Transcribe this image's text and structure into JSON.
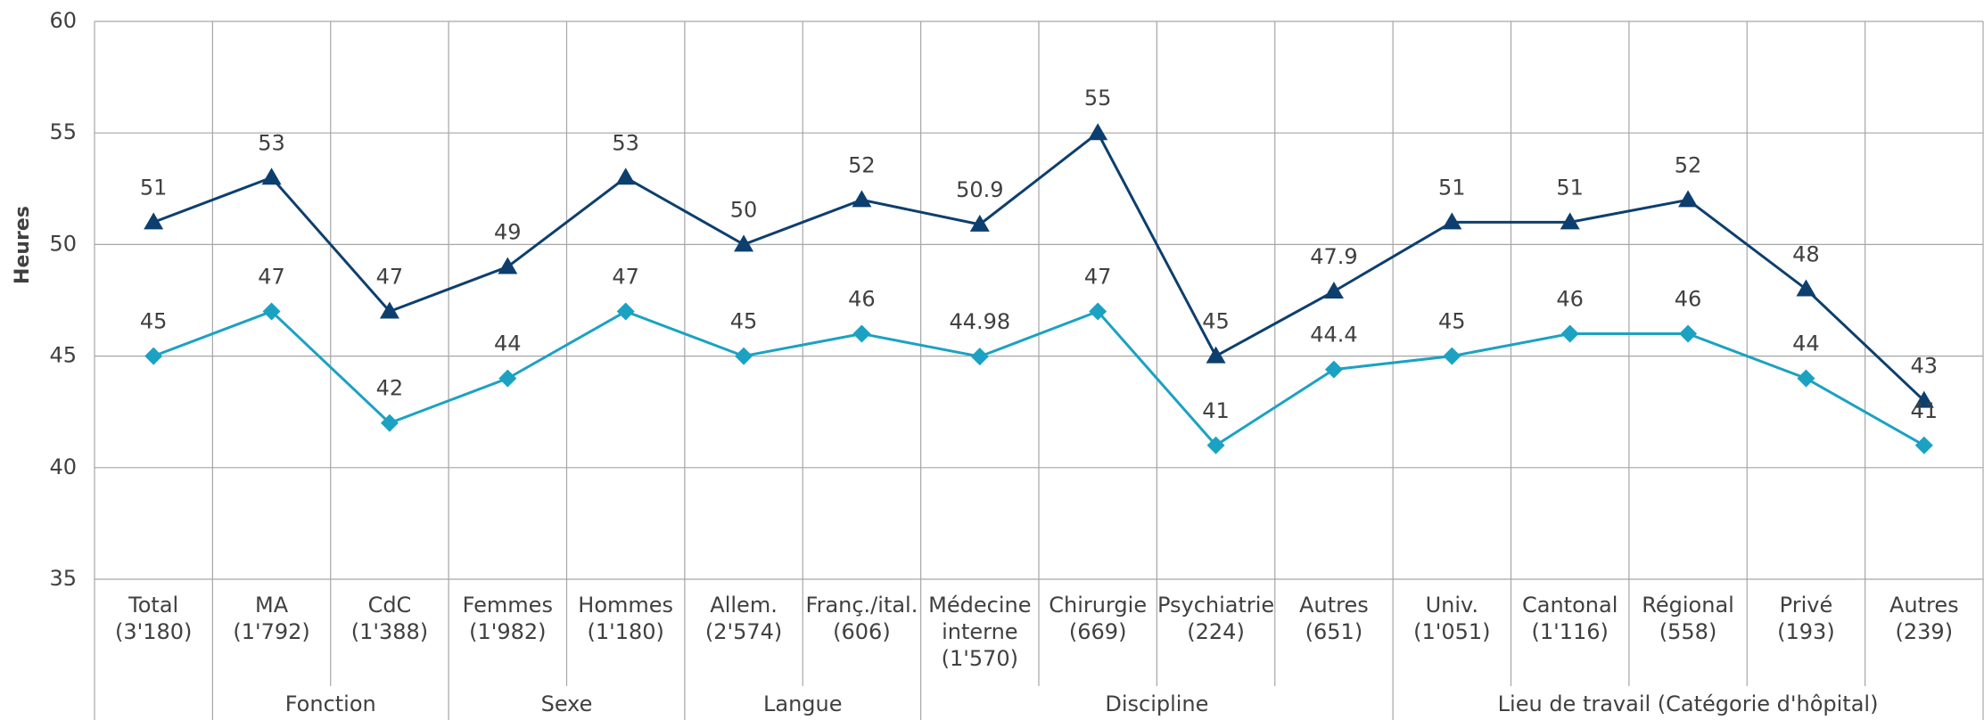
{
  "chart_data": {
    "type": "line",
    "y_label": "Heures",
    "categories": [
      "Total\n(3'180)",
      "MA\n(1'792)",
      "CdC\n(1'388)",
      "Femmes\n(1'982)",
      "Hommes\n(1'180)",
      "Allem.\n(2'574)",
      "Franç./ital.\n(606)",
      "Médecine\ninterne\n(1'570)",
      "Chirurgie\n(669)",
      "Psychiatrie\n(224)",
      "Autres\n(651)",
      "Univ.\n(1'051)",
      "Cantonal\n(1'116)",
      "Régional\n(558)",
      "Privé\n(193)",
      "Autres\n(239)"
    ],
    "groups": [
      null,
      "Fonction",
      "Fonction",
      "Sexe",
      "Sexe",
      "Langue",
      "Langue",
      "Discipline",
      "Discipline",
      "Discipline",
      "Discipline",
      "Lieu de travail (Catégorie d'hôpital)",
      "Lieu de travail (Catégorie d'hôpital)",
      "Lieu de travail (Catégorie d'hôpital)",
      "Lieu de travail (Catégorie d'hôpital)",
      "Lieu de travail (Catégorie d'hôpital)"
    ],
    "series": [
      {
        "color": "#0d3f6e",
        "marker": "triangle",
        "values": [
          51,
          53,
          47,
          49,
          53,
          50,
          52,
          50.9,
          55,
          45,
          47.9,
          51,
          51,
          52,
          48,
          43
        ]
      },
      {
        "color": "#1ba2c2",
        "marker": "diamond",
        "values": [
          45,
          47,
          42,
          44,
          47,
          45,
          46,
          44.98,
          47,
          41,
          44.4,
          45,
          46,
          46,
          44,
          41
        ]
      }
    ],
    "ylim": [
      35,
      60
    ],
    "yticks": [
      35,
      40,
      45,
      50,
      55,
      60
    ],
    "grid": true
  }
}
